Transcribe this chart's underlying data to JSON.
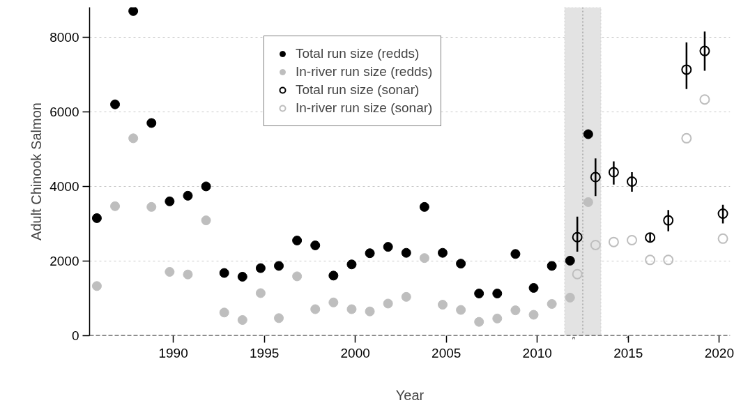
{
  "chart_data": {
    "type": "scatter",
    "xlabel": "Year",
    "ylabel": "Adult Chinook Salmon",
    "xlim": [
      1985.4,
      2020.6
    ],
    "ylim": [
      0,
      8800
    ],
    "xticks": [
      1990,
      1995,
      2000,
      2005,
      2010,
      2015,
      2020
    ],
    "yticks": [
      0,
      2000,
      4000,
      6000,
      8000
    ],
    "grid": "y",
    "legend": "top",
    "series": [
      {
        "name": "Total run size (redds)",
        "color": "#000000",
        "marker": "circle",
        "x": [
          1985.8,
          1986.8,
          1987.8,
          1988.8,
          1989.8,
          1990.8,
          1991.8,
          1992.8,
          1993.8,
          1994.8,
          1995.8,
          1996.8,
          1997.8,
          1998.8,
          1999.8,
          2000.8,
          2001.8,
          2002.8,
          2003.8,
          2004.8,
          2005.8,
          2006.8,
          2007.8,
          2008.8,
          2009.8,
          2010.8,
          2011.8,
          2012.8
        ],
        "values": [
          3150,
          6200,
          8700,
          5700,
          3600,
          3750,
          4000,
          1680,
          1580,
          1810,
          1870,
          2550,
          2420,
          1610,
          1910,
          2210,
          2380,
          2220,
          3450,
          2220,
          1930,
          1130,
          1130,
          2190,
          1280,
          1870,
          2010,
          5400
        ]
      },
      {
        "name": "In-river run size (redds)",
        "color": "#bebebe",
        "marker": "circle",
        "x": [
          1985.8,
          1986.8,
          1987.8,
          1988.8,
          1989.8,
          1990.8,
          1991.8,
          1992.8,
          1993.8,
          1994.8,
          1995.8,
          1996.8,
          1997.8,
          1998.8,
          1999.8,
          2000.8,
          2001.8,
          2002.8,
          2003.8,
          2004.8,
          2005.8,
          2006.8,
          2007.8,
          2008.8,
          2009.8,
          2010.8,
          2011.8,
          2012.8
        ],
        "values": [
          1330,
          3470,
          5290,
          3450,
          1710,
          1640,
          3090,
          620,
          420,
          1140,
          470,
          1590,
          710,
          890,
          710,
          650,
          860,
          1040,
          2080,
          830,
          690,
          370,
          460,
          680,
          560,
          850,
          1020,
          3580
        ]
      },
      {
        "name": "Total run size (sonar)",
        "color": "#000000",
        "marker": "circle_open",
        "x": [
          2012.2,
          2013.2,
          2014.2,
          2015.2,
          2016.2,
          2017.2,
          2018.2,
          2019.2,
          2020.2
        ],
        "values": [
          2640,
          4250,
          4380,
          4130,
          2630,
          3090,
          7130,
          7630,
          3270
        ],
        "errors": [
          [
            2250,
            3190
          ],
          [
            3740,
            4750
          ],
          [
            4050,
            4670
          ],
          [
            3860,
            4380
          ],
          [
            2530,
            2750
          ],
          [
            2800,
            3370
          ],
          [
            6610,
            7860
          ],
          [
            7100,
            8150
          ],
          [
            3010,
            3510
          ]
        ]
      },
      {
        "name": "In-river run size (sonar)",
        "color": "#bebebe",
        "marker": "circle_open",
        "x": [
          2012.2,
          2013.2,
          2014.2,
          2015.2,
          2016.2,
          2017.2,
          2018.2,
          2019.2,
          2020.2
        ],
        "values": [
          1650,
          2430,
          2510,
          2560,
          2030,
          2030,
          5290,
          6330,
          2600
        ]
      }
    ],
    "bands": [
      {
        "axis": "x",
        "from": 2011.5,
        "to": 2013.5,
        "color": "#e3e3e3"
      }
    ],
    "ref_lines": [
      {
        "axis": "x",
        "value": 2012.5,
        "color": "#a0a0a0",
        "line_style": "dotted"
      },
      {
        "axis": "y",
        "value": 0,
        "color": "#000000",
        "line_style": "dashed"
      }
    ]
  }
}
